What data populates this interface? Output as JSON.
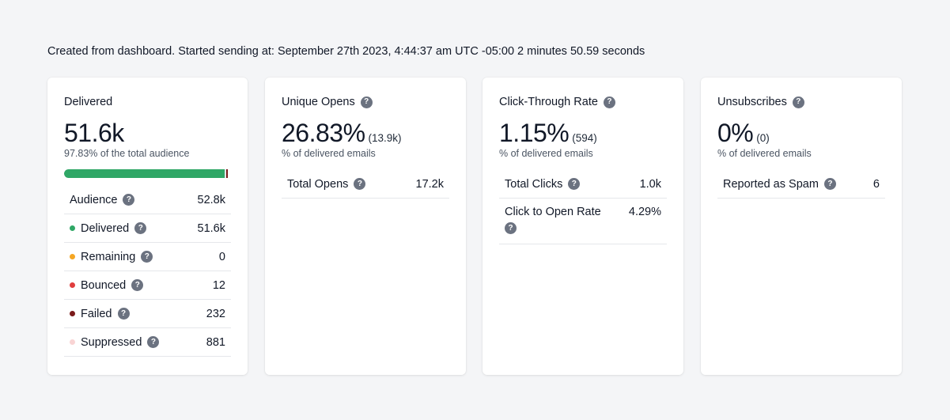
{
  "header": {
    "text": "Created from dashboard. Started sending at: September 27th 2023, 4:44:37 am UTC -05:00 2 minutes 50.59 seconds"
  },
  "delivered_card": {
    "title": "Delivered",
    "value": "51.6k",
    "caption": "97.83% of the total audience",
    "progress_fraction": 0.9783,
    "rows": [
      {
        "label": "Audience",
        "value": "52.8k",
        "dot": null
      },
      {
        "label": "Delivered",
        "value": "51.6k",
        "dot": "#2fa766"
      },
      {
        "label": "Remaining",
        "value": "0",
        "dot": "#f5a623"
      },
      {
        "label": "Bounced",
        "value": "12",
        "dot": "#e03e3e"
      },
      {
        "label": "Failed",
        "value": "232",
        "dot": "#7a1b1b"
      },
      {
        "label": "Suppressed",
        "value": "881",
        "dot": "#f9d4d4"
      }
    ]
  },
  "opens_card": {
    "title": "Unique Opens",
    "value": "26.83%",
    "sub": "(13.9k)",
    "caption": "% of delivered emails",
    "rows": [
      {
        "label": "Total Opens",
        "value": "17.2k"
      }
    ]
  },
  "ctr_card": {
    "title": "Click-Through Rate",
    "value": "1.15%",
    "sub": "(594)",
    "caption": "% of delivered emails",
    "rows": [
      {
        "label": "Total Clicks",
        "value": "1.0k"
      },
      {
        "label": "Click to Open Rate",
        "value": "4.29%"
      }
    ]
  },
  "unsub_card": {
    "title": "Unsubscribes",
    "value": "0%",
    "sub": "(0)",
    "caption": "% of delivered emails",
    "rows": [
      {
        "label": "Reported as Spam",
        "value": "6"
      }
    ]
  },
  "help_glyph": "?"
}
